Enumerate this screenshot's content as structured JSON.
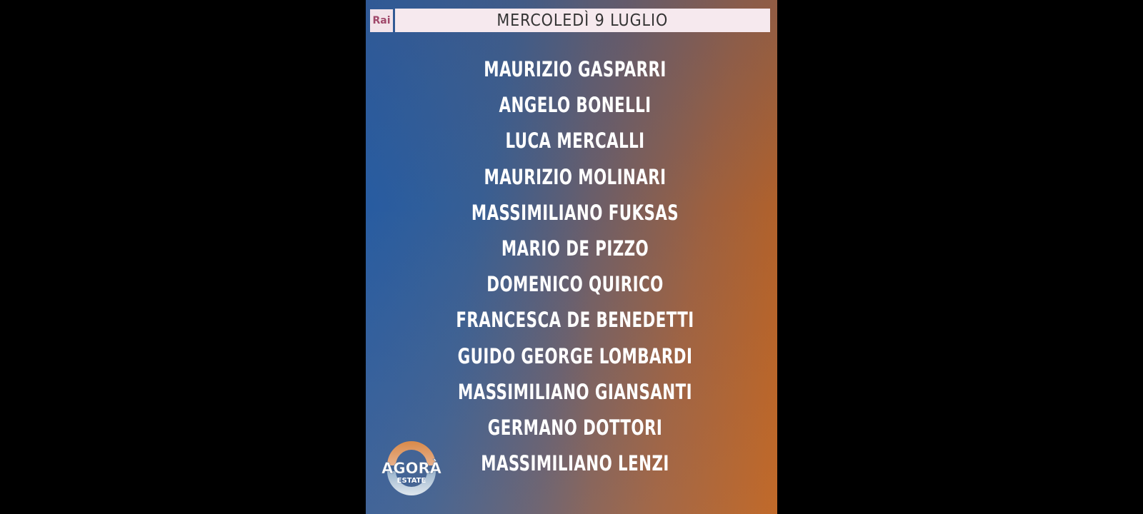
{
  "header": {
    "channel_logo": "Rai",
    "date": "MERCOLEDÌ 9 LUGLIO"
  },
  "guests": [
    "MAURIZIO GASPARRI",
    "ANGELO BONELLI",
    "LUCA MERCALLI",
    "MAURIZIO MOLINARI",
    "MASSIMILIANO FUKSAS",
    "MARIO DE PIZZO",
    "DOMENICO QUIRICO",
    "FRANCESCA DE BENEDETTI",
    "GUIDO GEORGE LOMBARDI",
    "MASSIMILIANO GIANSANTI",
    "GERMANO DOTTORI",
    "MASSIMILIANO LENZI"
  ],
  "show_logo": {
    "line1": "AGORÀ",
    "line2": "ESTATE"
  },
  "colors": {
    "left": "#2f5f9a",
    "right": "#c0621c",
    "header_bg": "#f6e9ee",
    "rai": "#a0486a"
  }
}
